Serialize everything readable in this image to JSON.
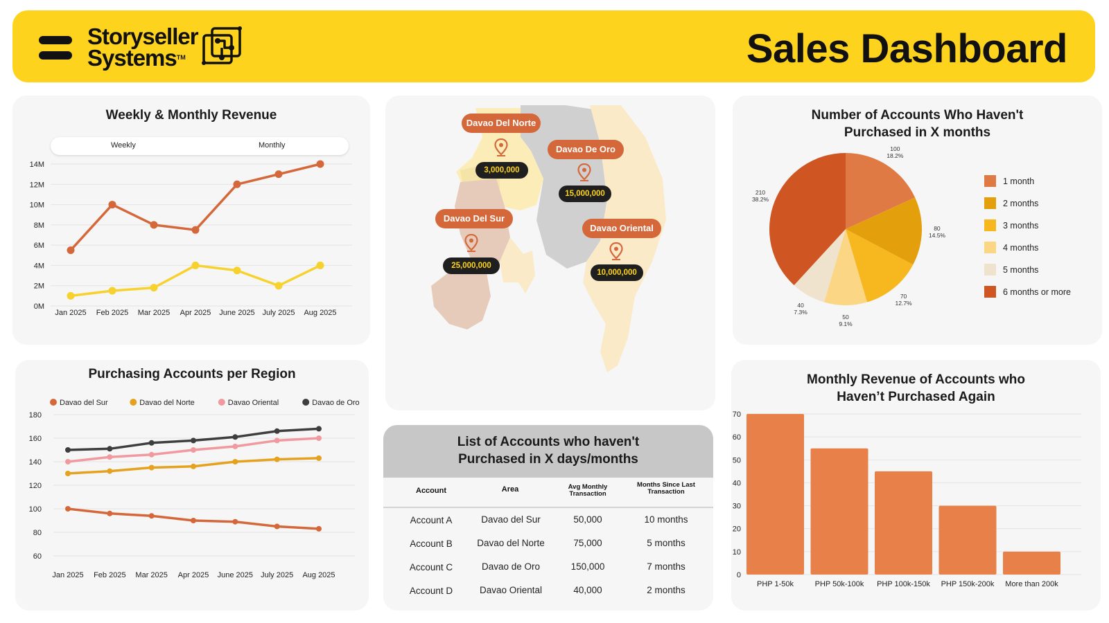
{
  "header": {
    "brand_line1": "Storyseller",
    "brand_line2": "Systems",
    "brand_tm": "TM",
    "title": "Sales Dashboard"
  },
  "colors": {
    "header_bg": "#FDD31D",
    "card_bg": "#F6F6F6",
    "accent_orange": "#D4683A",
    "accent_yellow": "#F7D22F",
    "dark": "#3E3E3E"
  },
  "revenue": {
    "toggle_weekly": "Weekly",
    "toggle_monthly": "Monthly"
  },
  "map": {
    "regions": [
      {
        "name": "Davao Del Norte",
        "value": "3,000,000"
      },
      {
        "name": "Davao De Oro",
        "value": "15,000,000"
      },
      {
        "name": "Davao Del Sur",
        "value": "25,000,000"
      },
      {
        "name": "Davao Oriental",
        "value": "10,000,000"
      }
    ]
  },
  "accounts_table": {
    "title_line1": "List of Accounts who haven't",
    "title_line2": "Purchased in X days/months",
    "headers": [
      "Account",
      "Area",
      "Avg Monthly",
      "Transaction",
      "Months Since Last",
      "Transaction"
    ],
    "rows": [
      {
        "account": "Account A",
        "area": "Davao del Sur",
        "avg": "50,000",
        "months": "10 months"
      },
      {
        "account": "Account B",
        "area": "Davao del Norte",
        "avg": "75,000",
        "months": "5 months"
      },
      {
        "account": "Account C",
        "area": "Davao de Oro",
        "avg": "150,000",
        "months": "7 months"
      },
      {
        "account": "Account D",
        "area": "Davao Oriental",
        "avg": "40,000",
        "months": "2 months"
      }
    ]
  },
  "chart_data": [
    {
      "type": "line",
      "title": "Weekly & Monthly Revenue",
      "categories": [
        "Jan 2025",
        "Feb 2025",
        "Mar 2025",
        "Apr 2025",
        "June 2025",
        "July 2025",
        "Aug 2025"
      ],
      "ylim": [
        0,
        14
      ],
      "yticks": [
        "0M",
        "2M",
        "4M",
        "6M",
        "8M",
        "10M",
        "12M",
        "14M"
      ],
      "series": [
        {
          "name": "Monthly",
          "color": "#D4683A",
          "values": [
            5.5,
            10,
            8,
            7.5,
            12,
            13,
            14
          ]
        },
        {
          "name": "Weekly",
          "color": "#F7D22F",
          "values": [
            1,
            1.5,
            1.8,
            4,
            3.5,
            2,
            4
          ]
        }
      ]
    },
    {
      "type": "line",
      "title": "Purchasing Accounts per Region",
      "categories": [
        "Jan 2025",
        "Feb 2025",
        "Mar 2025",
        "Apr 2025",
        "June 2025",
        "July 2025",
        "Aug 2025"
      ],
      "ylim": [
        60,
        180
      ],
      "yticks": [
        "60",
        "80",
        "100",
        "120",
        "140",
        "160",
        "180"
      ],
      "legend": "top",
      "series": [
        {
          "name": "Davao del Sur",
          "color": "#D4683A",
          "values": [
            100,
            96,
            94,
            90,
            89,
            85,
            83
          ]
        },
        {
          "name": "Davao del Norte",
          "color": "#E4A21E",
          "values": [
            130,
            132,
            135,
            136,
            140,
            142,
            143
          ]
        },
        {
          "name": "Davao Oriental",
          "color": "#F09AA0",
          "values": [
            140,
            144,
            146,
            150,
            153,
            158,
            160
          ]
        },
        {
          "name": "Davao de Oro",
          "color": "#3E3E3E",
          "values": [
            150,
            151,
            156,
            158,
            161,
            166,
            168
          ]
        }
      ]
    },
    {
      "type": "pie",
      "title_line1": "Number of Accounts Who Haven't",
      "title_line2": "Purchased in X months",
      "legend": "right",
      "slices": [
        {
          "label": "1 month",
          "value": 100,
          "pct": "18.2%",
          "color": "#E07A45"
        },
        {
          "label": "2 months",
          "value": 80,
          "pct": "14.5%",
          "color": "#E4A00C"
        },
        {
          "label": "3 months",
          "value": 70,
          "pct": "12.7%",
          "color": "#F7B71E"
        },
        {
          "label": "4 months",
          "value": 50,
          "pct": "9.1%",
          "color": "#FBD684"
        },
        {
          "label": "5 months",
          "value": 40,
          "pct": "7.3%",
          "color": "#EFE3CD"
        },
        {
          "label": "6 months or more",
          "value": 210,
          "pct": "38.2%",
          "color": "#CF5522"
        }
      ]
    },
    {
      "type": "bar",
      "title_line1": "Monthly Revenue of Accounts who",
      "title_line2": "Haven’t Purchased Again",
      "categories": [
        "PHP 1-50k",
        "PHP 50k-100k",
        "PHP 100k-150k",
        "PHP 150k-200k",
        "More than 200k"
      ],
      "values": [
        70,
        55,
        45,
        30,
        10
      ],
      "ylim": [
        0,
        70
      ],
      "yticks": [
        "0",
        "10",
        "20",
        "30",
        "40",
        "50",
        "60",
        "70"
      ],
      "color": "#E8804A"
    }
  ]
}
